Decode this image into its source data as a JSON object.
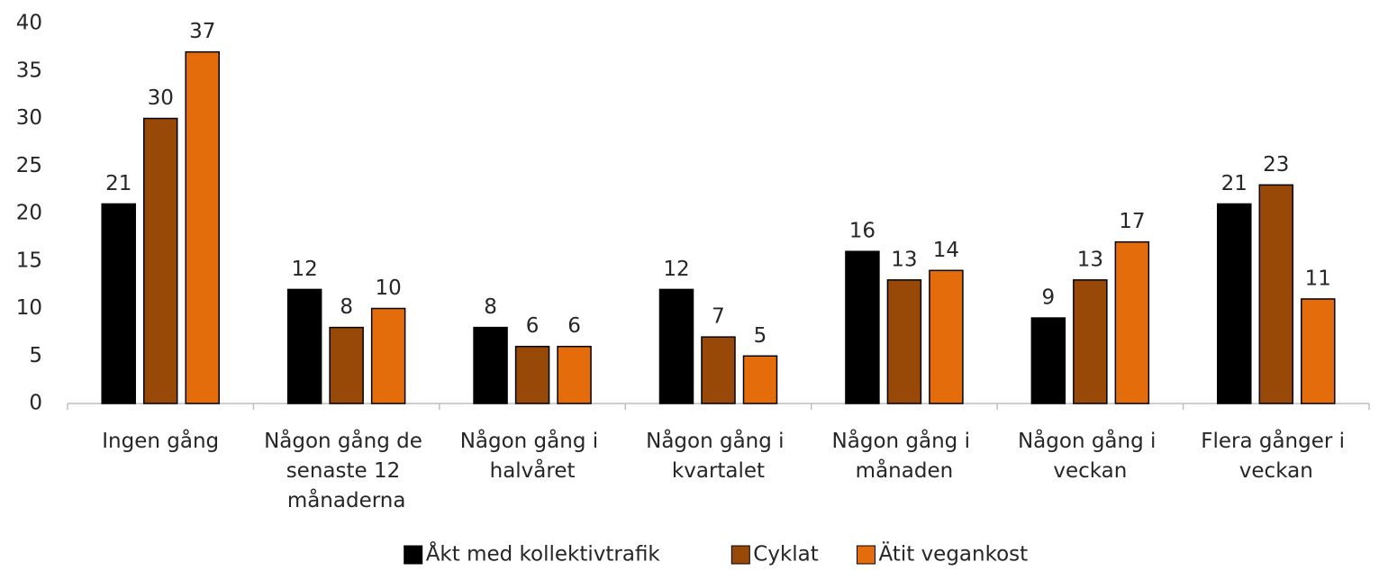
{
  "chart_data": {
    "type": "bar",
    "categories": [
      "Ingen gång",
      "Någon gång de senaste 12 månaderna",
      "Någon gång i halvåret",
      "Någon gång i kvartalet",
      "Någon gång i månaden",
      "Någon gång i veckan",
      "Flera gånger i veckan"
    ],
    "series": [
      {
        "name": "Åkt med kollektivtrafik",
        "color": "#000000",
        "values": [
          21,
          12,
          8,
          12,
          16,
          9,
          21
        ]
      },
      {
        "name": "Cyklat",
        "color": "#984807",
        "values": [
          30,
          8,
          6,
          7,
          13,
          13,
          23
        ]
      },
      {
        "name": "Ätit vegankost",
        "color": "#E46C0A",
        "values": [
          37,
          10,
          6,
          5,
          14,
          17,
          11
        ]
      }
    ],
    "ylim": [
      0,
      40
    ],
    "yticks": [
      0,
      5,
      10,
      15,
      20,
      25,
      30,
      35,
      40
    ],
    "grid": false,
    "legend": "bottom"
  }
}
